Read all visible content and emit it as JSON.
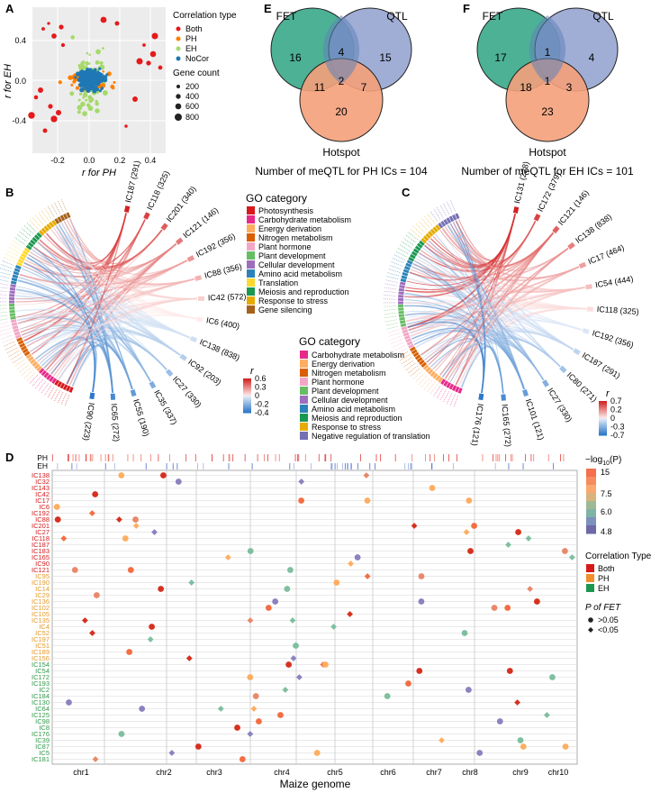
{
  "panels": {
    "A": {
      "letter": "A",
      "xlabel": "r for PH",
      "ylabel": "r for EH",
      "xticks": [
        "-0.2",
        "0.0",
        "0.2",
        "0.4"
      ],
      "yticks": [
        "0.4",
        "0.0",
        "-0.4"
      ],
      "legend_title": "Correlation type",
      "legend_items": [
        {
          "label": "Both",
          "color": "#e41a1c"
        },
        {
          "label": "PH",
          "color": "#ff7f00"
        },
        {
          "label": "EH",
          "color": "#a6d96a"
        },
        {
          "label": "NoCor",
          "color": "#1f78b4"
        }
      ],
      "size_title": "Gene count",
      "size_items": [
        "200",
        "400",
        "600",
        "800"
      ]
    },
    "B": {
      "letter": "B",
      "ic_labels": [
        "IC187 (291)",
        "IC118 (325)",
        "IC201 (340)",
        "IC121 (146)",
        "IC192 (356)",
        "IC88 (356)",
        "IC42 (572)",
        "IC6 (400)",
        "IC138 (838)",
        "IC92 (203)",
        "IC27 (330)",
        "IC35 (337)",
        "IC55 (190)",
        "IC65 (272)",
        "IC90 (223)"
      ],
      "go_title": "GO category",
      "go_items": [
        {
          "label": "Photosynthesis",
          "color": "#d7191c"
        },
        {
          "label": "Carbohydrate metabolism",
          "color": "#e7298a"
        },
        {
          "label": "Energy derivation",
          "color": "#fdae61"
        },
        {
          "label": "Nitrogen metabolism",
          "color": "#d95f02"
        },
        {
          "label": "Plant hormone",
          "color": "#f4a6c6"
        },
        {
          "label": "Plant development",
          "color": "#66bd63"
        },
        {
          "label": "Cellular development",
          "color": "#9e6ebd"
        },
        {
          "label": "Amino acid metabolism",
          "color": "#2b83ba"
        },
        {
          "label": "Translation",
          "color": "#ffd92f"
        },
        {
          "label": "Meiosis and reproduction",
          "color": "#1a9850"
        },
        {
          "label": "Response to stress",
          "color": "#e6ab02"
        },
        {
          "label": "Gene silencing",
          "color": "#a6611a"
        }
      ],
      "r_title": "r",
      "r_ticks": [
        "0.6",
        "0.3",
        "0",
        "-0.2",
        "-0.4"
      ]
    },
    "C": {
      "letter": "C",
      "ic_labels": [
        "IC131 (228)",
        "IC172 (379)",
        "IC121 (146)",
        "IC138 (838)",
        "IC17 (464)",
        "IC54 (444)",
        "IC118 (325)",
        "IC192 (356)",
        "IC187 (291)",
        "IC80 (271)",
        "IC27 (330)",
        "IC101 (121)",
        "IC165 (272)",
        "IC176 (121)"
      ],
      "go_title": "GO category",
      "go_items": [
        {
          "label": "Carbohydrate metabolism",
          "color": "#e7298a"
        },
        {
          "label": "Energy derivation",
          "color": "#fdae61"
        },
        {
          "label": "Nitrogen metabolism",
          "color": "#d95f02"
        },
        {
          "label": "Plant hormone",
          "color": "#f4a6c6"
        },
        {
          "label": "Plant development",
          "color": "#66bd63"
        },
        {
          "label": "Cellular development",
          "color": "#9e6ebd"
        },
        {
          "label": "Amino acid metabolism",
          "color": "#2b83ba"
        },
        {
          "label": "Meiosis and reproduction",
          "color": "#1a9850"
        },
        {
          "label": "Response to stress",
          "color": "#e6ab02"
        },
        {
          "label": "Negative regulation of translation",
          "color": "#7570b3"
        }
      ],
      "r_title": "r",
      "r_ticks": [
        "0.7",
        "0.2",
        "0",
        "-0.3",
        "-0.7"
      ]
    },
    "E": {
      "letter": "E",
      "labels": [
        "FET",
        "QTL",
        "Hotspot"
      ],
      "counts": [
        "16",
        "4",
        "15",
        "11",
        "2",
        "7",
        "20"
      ],
      "caption": "Number of meQTL for PH ICs = 104"
    },
    "F": {
      "letter": "F",
      "labels": [
        "FET",
        "QTL",
        "Hotspot"
      ],
      "counts": [
        "17",
        "1",
        "4",
        "18",
        "1",
        "3",
        "23"
      ],
      "caption": "Number of meQTL for EH ICs = 101"
    },
    "D": {
      "letter": "D",
      "track_labels": [
        "PH",
        "EH"
      ],
      "rows": [
        {
          "label": "IC138",
          "type": "Both"
        },
        {
          "label": "IC32",
          "type": "Both"
        },
        {
          "label": "IC143",
          "type": "Both"
        },
        {
          "label": "IC42",
          "type": "Both"
        },
        {
          "label": "IC17",
          "type": "Both"
        },
        {
          "label": "IC6",
          "type": "Both"
        },
        {
          "label": "IC192",
          "type": "Both"
        },
        {
          "label": "IC88",
          "type": "Both"
        },
        {
          "label": "IC201",
          "type": "Both"
        },
        {
          "label": "IC27",
          "type": "Both"
        },
        {
          "label": "IC118",
          "type": "Both"
        },
        {
          "label": "IC187",
          "type": "Both"
        },
        {
          "label": "IC183",
          "type": "Both"
        },
        {
          "label": "IC165",
          "type": "Both"
        },
        {
          "label": "IC90",
          "type": "Both"
        },
        {
          "label": "IC121",
          "type": "Both"
        },
        {
          "label": "IC95",
          "type": "PH"
        },
        {
          "label": "IC190",
          "type": "PH"
        },
        {
          "label": "IC14",
          "type": "PH"
        },
        {
          "label": "IC29",
          "type": "PH"
        },
        {
          "label": "IC136",
          "type": "PH"
        },
        {
          "label": "IC102",
          "type": "PH"
        },
        {
          "label": "IC105",
          "type": "PH"
        },
        {
          "label": "IC135",
          "type": "PH"
        },
        {
          "label": "IC4",
          "type": "PH"
        },
        {
          "label": "IC52",
          "type": "PH"
        },
        {
          "label": "IC197",
          "type": "PH"
        },
        {
          "label": "IC51",
          "type": "PH"
        },
        {
          "label": "IC189",
          "type": "PH"
        },
        {
          "label": "IC156",
          "type": "PH"
        },
        {
          "label": "IC154",
          "type": "EH"
        },
        {
          "label": "IC54",
          "type": "EH"
        },
        {
          "label": "IC172",
          "type": "EH"
        },
        {
          "label": "IC193",
          "type": "EH"
        },
        {
          "label": "IC2",
          "type": "EH"
        },
        {
          "label": "IC184",
          "type": "EH"
        },
        {
          "label": "IC130",
          "type": "EH"
        },
        {
          "label": "IC64",
          "type": "EH"
        },
        {
          "label": "IC125",
          "type": "EH"
        },
        {
          "label": "IC98",
          "type": "EH"
        },
        {
          "label": "IC8",
          "type": "EH"
        },
        {
          "label": "IC176",
          "type": "EH"
        },
        {
          "label": "IC39",
          "type": "EH"
        },
        {
          "label": "IC87",
          "type": "EH"
        },
        {
          "label": "IC5",
          "type": "EH"
        },
        {
          "label": "IC181",
          "type": "EH"
        }
      ],
      "chromosomes": [
        "chr1",
        "chr2",
        "chr3",
        "chr4",
        "chr5",
        "chr6",
        "chr7",
        "chr8",
        "chr9",
        "chr10"
      ],
      "xlabel": "Maize genome",
      "color_legend_title": "−log",
      "color_legend_sub": "10",
      "color_legend_tail": "(P)",
      "color_ticks": [
        "15",
        "7.5",
        "6.0",
        "4.8"
      ],
      "type_legend_title": "Correlation Type",
      "type_items": [
        {
          "label": "Both",
          "color": "#d7191c"
        },
        {
          "label": "PH",
          "color": "#f28e2b"
        },
        {
          "label": "EH",
          "color": "#1a9850"
        }
      ],
      "fet_title": "P of FET",
      "fet_items": [
        ">0.05",
        "<0.05"
      ]
    }
  }
}
